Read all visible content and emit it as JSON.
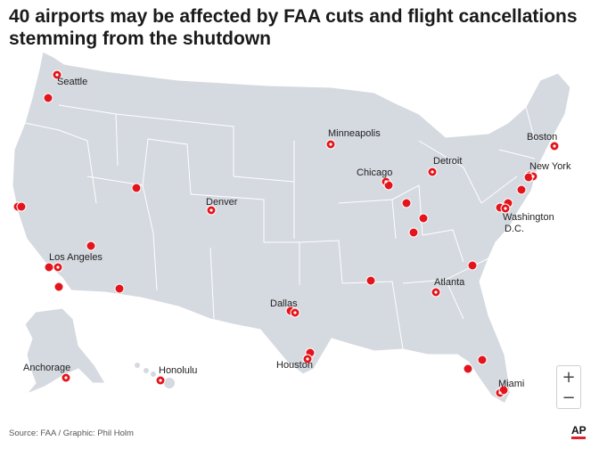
{
  "title": "40 airports may be affected by FAA cuts and flight cancellations stemming from the shutdown",
  "source": "Source: FAA / Graphic: Phil Holm",
  "logo": "AP",
  "zoom": {
    "in_label": "+",
    "out_label": "−"
  },
  "colors": {
    "land": "#d5d9e0",
    "state_border": "#ffffff",
    "ocean": "#ffffff",
    "marker": "#e3141b",
    "marker_outline": "#ffffff"
  },
  "cities": [
    {
      "name": "Seattle"
    },
    {
      "name": "Minneapolis"
    },
    {
      "name": "Boston"
    },
    {
      "name": "Detroit"
    },
    {
      "name": "Chicago"
    },
    {
      "name": "New York"
    },
    {
      "name": "Denver"
    },
    {
      "name": "Washington D.C."
    },
    {
      "name": "Los Angeles"
    },
    {
      "name": "Atlanta"
    },
    {
      "name": "Dallas"
    },
    {
      "name": "Houston"
    },
    {
      "name": "Anchorage"
    },
    {
      "name": "Honolulu"
    },
    {
      "name": "Miami"
    }
  ],
  "marker_count": 40
}
